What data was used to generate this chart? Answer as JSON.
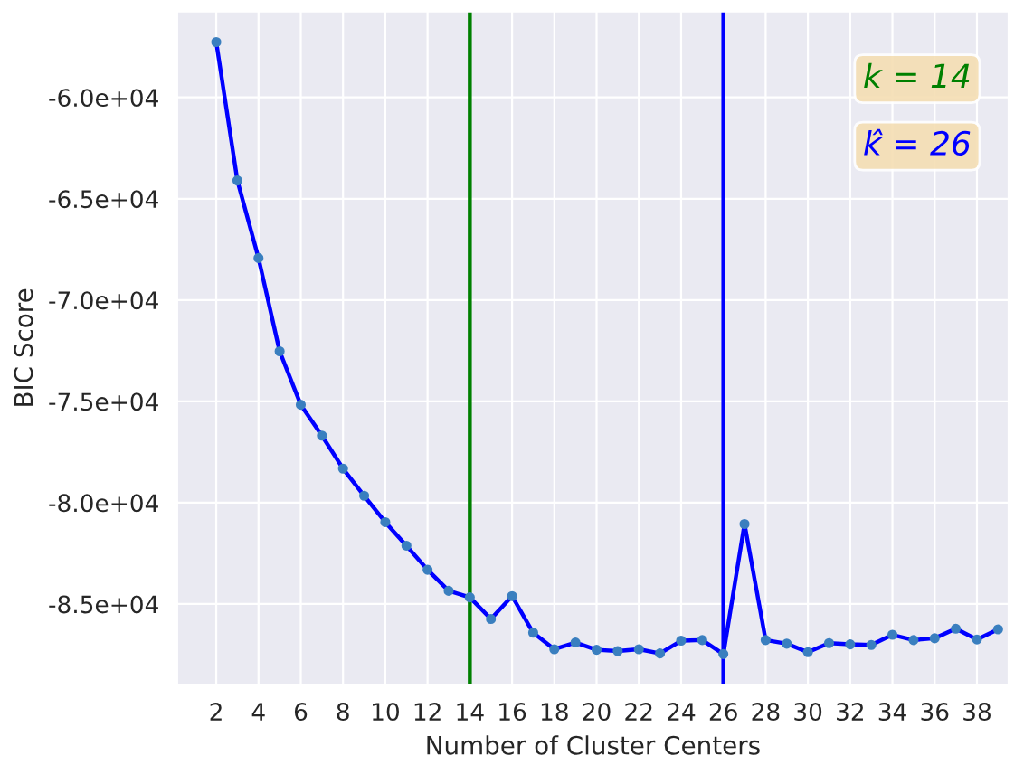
{
  "chart_data": {
    "type": "line",
    "xlabel": "Number of Cluster Centers",
    "ylabel": "BIC Score",
    "x": [
      2,
      3,
      4,
      5,
      6,
      7,
      8,
      9,
      10,
      11,
      12,
      13,
      14,
      15,
      16,
      17,
      18,
      19,
      20,
      21,
      22,
      23,
      24,
      25,
      26,
      27,
      28,
      29,
      30,
      31,
      32,
      33,
      34,
      35,
      36,
      37,
      38,
      39
    ],
    "series": [
      {
        "color": "#0000ff",
        "values": [
          -57270,
          -64100,
          -67930,
          -72530,
          -75170,
          -76690,
          -78320,
          -79660,
          -80960,
          -82120,
          -83310,
          -84350,
          -84670,
          -85740,
          -84610,
          -86420,
          -87230,
          -86900,
          -87260,
          -87320,
          -87230,
          -87440,
          -86810,
          -86780,
          -87470,
          -81050,
          -86780,
          -86960,
          -87380,
          -86930,
          -86990,
          -87020,
          -86520,
          -86780,
          -86690,
          -86220,
          -86750,
          -86250
        ]
      }
    ],
    "marker": "circle",
    "line_style": "solid",
    "grid": true,
    "legend": false,
    "xlim": [
      0.15,
      39.5
    ],
    "xticks": [
      2,
      4,
      6,
      8,
      10,
      12,
      14,
      16,
      18,
      20,
      22,
      24,
      26,
      28,
      30,
      32,
      34,
      36,
      38
    ],
    "ylim": [
      -88980,
      -55760
    ],
    "yticks": [
      {
        "value": -60000,
        "label": "-6.0e+04"
      },
      {
        "value": -65000,
        "label": "-6.5e+04"
      },
      {
        "value": -70000,
        "label": "-7.0e+04"
      },
      {
        "value": -75000,
        "label": "-7.5e+04"
      },
      {
        "value": -80000,
        "label": "-8.0e+04"
      },
      {
        "value": -85000,
        "label": "-8.5e+04"
      }
    ],
    "ref_lines": [
      {
        "axis": "x",
        "value": 14,
        "label": "k = 14",
        "color": "#008000"
      },
      {
        "axis": "x",
        "value": 26,
        "label": "k̂ = 26",
        "color": "#0000ff"
      }
    ]
  }
}
